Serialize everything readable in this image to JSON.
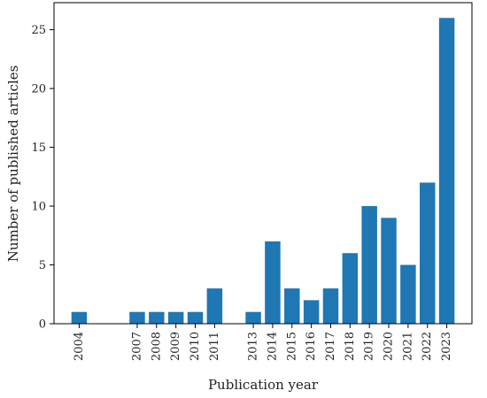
{
  "chart_data": {
    "type": "bar",
    "title": "",
    "xlabel": "Publication year",
    "ylabel": "Number of published articles",
    "x": [
      2004,
      2007,
      2008,
      2009,
      2010,
      2011,
      2013,
      2014,
      2015,
      2016,
      2017,
      2018,
      2019,
      2020,
      2021,
      2022,
      2023
    ],
    "categories": [
      "2004",
      "2007",
      "2008",
      "2009",
      "2010",
      "2011",
      "2013",
      "2014",
      "2015",
      "2016",
      "2017",
      "2018",
      "2019",
      "2020",
      "2021",
      "2022",
      "2023"
    ],
    "values": [
      1,
      1,
      1,
      1,
      1,
      3,
      1,
      7,
      3,
      2,
      3,
      6,
      10,
      9,
      5,
      12,
      26
    ],
    "ylim": [
      0,
      27.3
    ],
    "yticks": [
      0,
      5,
      10,
      15,
      20,
      25
    ],
    "grid": false,
    "legend": "none",
    "bar_color": "#1f77b4"
  }
}
